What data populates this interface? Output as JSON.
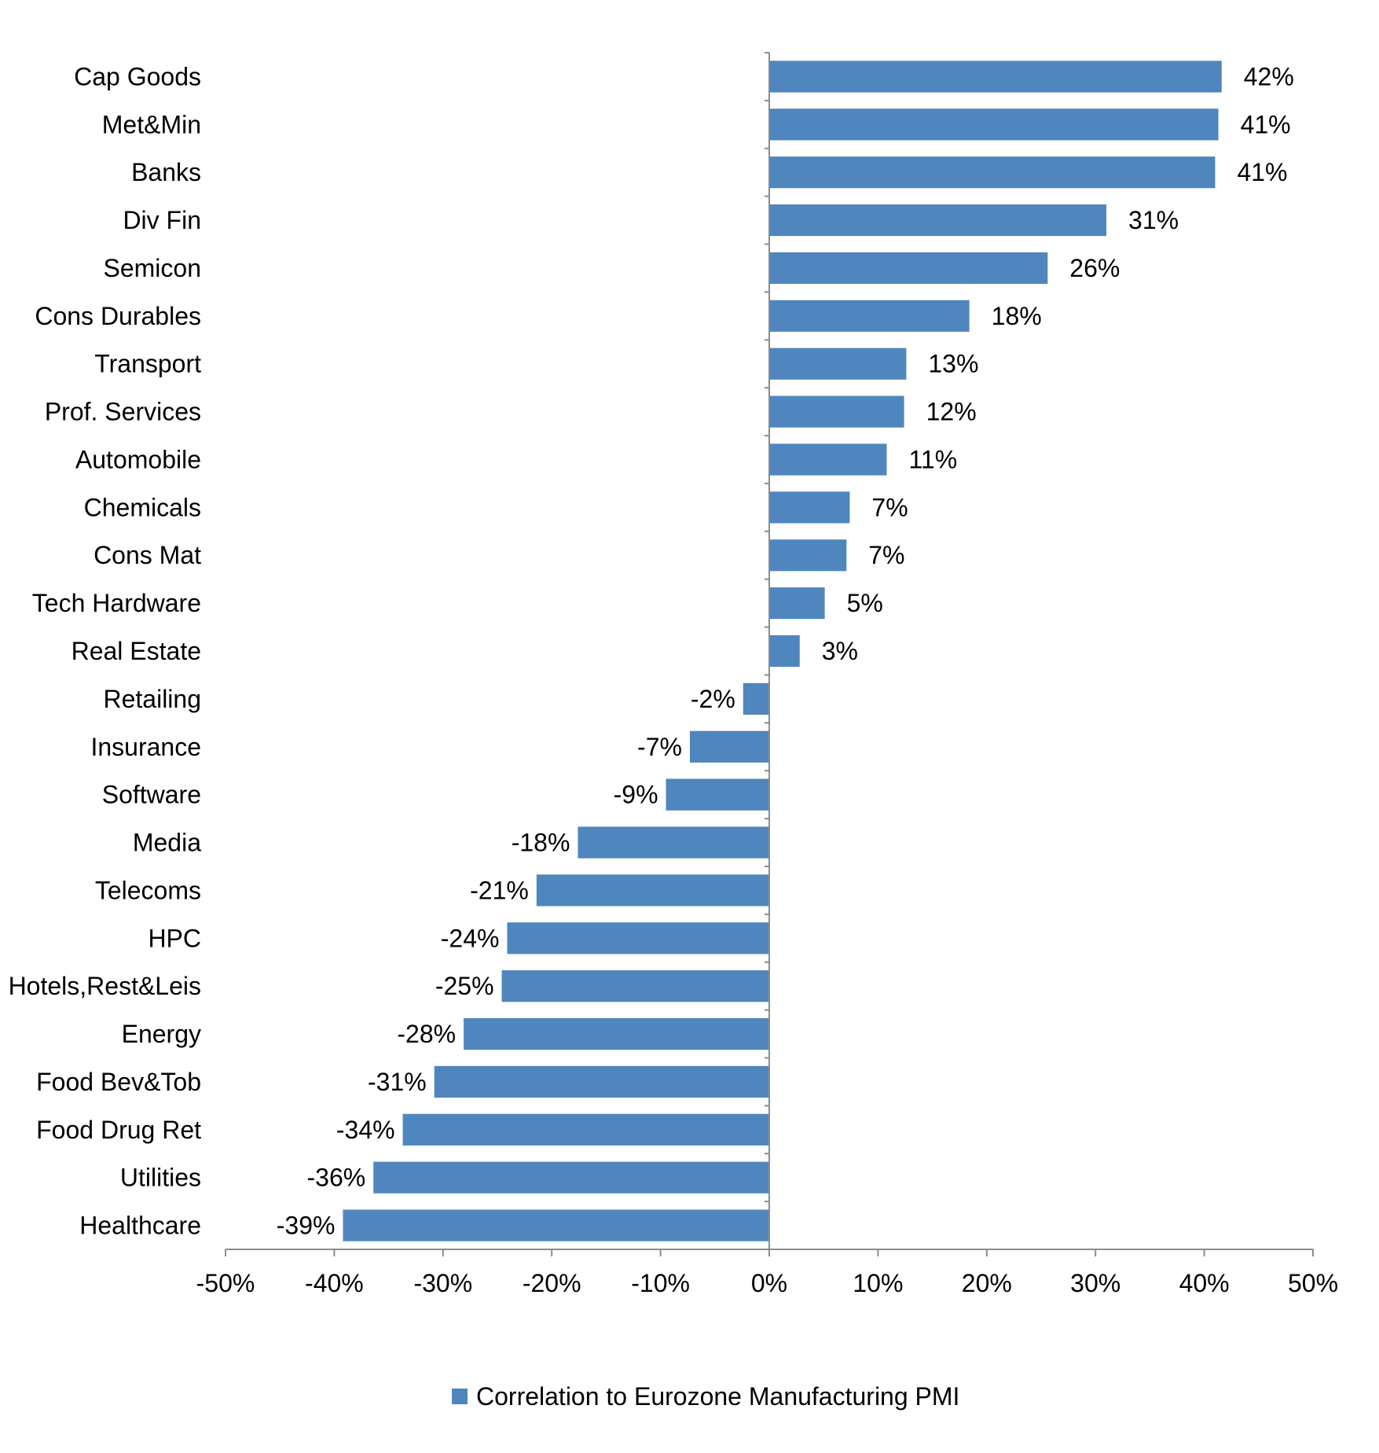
{
  "chart_data": {
    "type": "bar",
    "orientation": "horizontal",
    "title": "",
    "xlabel": "",
    "ylabel": "",
    "xlim": [
      -50,
      50
    ],
    "x_ticks": [
      -50,
      -40,
      -30,
      -20,
      -10,
      0,
      10,
      20,
      30,
      40,
      50
    ],
    "x_tick_labels": [
      "-50%",
      "-40%",
      "-30%",
      "-20%",
      "-10%",
      "0%",
      "10%",
      "20%",
      "30%",
      "40%",
      "50%"
    ],
    "grid": false,
    "legend_position": "bottom",
    "bar_color": "#4F86BD",
    "categories": [
      "Cap Goods",
      "Met&Min",
      "Banks",
      "Div Fin",
      "Semicon",
      "Cons Durables",
      "Transport",
      "Prof. Services",
      "Automobile",
      "Chemicals",
      "Cons Mat",
      "Tech Hardware",
      "Real Estate",
      "Retailing",
      "Insurance",
      "Software",
      "Media",
      "Telecoms",
      "HPC",
      "Hotels,Rest&Leis",
      "Energy",
      "Food Bev&Tob",
      "Food Drug Ret",
      "Utilities",
      "Healthcare"
    ],
    "series": [
      {
        "name": "Correlation to Eurozone Manufacturing PMI",
        "values": [
          41.6,
          41.3,
          41.0,
          31.0,
          25.6,
          18.4,
          12.6,
          12.4,
          10.8,
          7.4,
          7.1,
          5.1,
          2.8,
          -2.4,
          -7.3,
          -9.5,
          -17.6,
          -21.4,
          -24.1,
          -24.6,
          -28.1,
          -30.8,
          -33.7,
          -36.4,
          -39.2
        ],
        "labels": [
          "42%",
          "41%",
          "41%",
          "31%",
          "26%",
          "18%",
          "13%",
          "12%",
          "11%",
          "7%",
          "7%",
          "5%",
          "3%",
          "-2%",
          "-7%",
          "-9%",
          "-18%",
          "-21%",
          "-24%",
          "-25%",
          "-28%",
          "-31%",
          "-34%",
          "-36%",
          "-39%"
        ]
      }
    ]
  }
}
